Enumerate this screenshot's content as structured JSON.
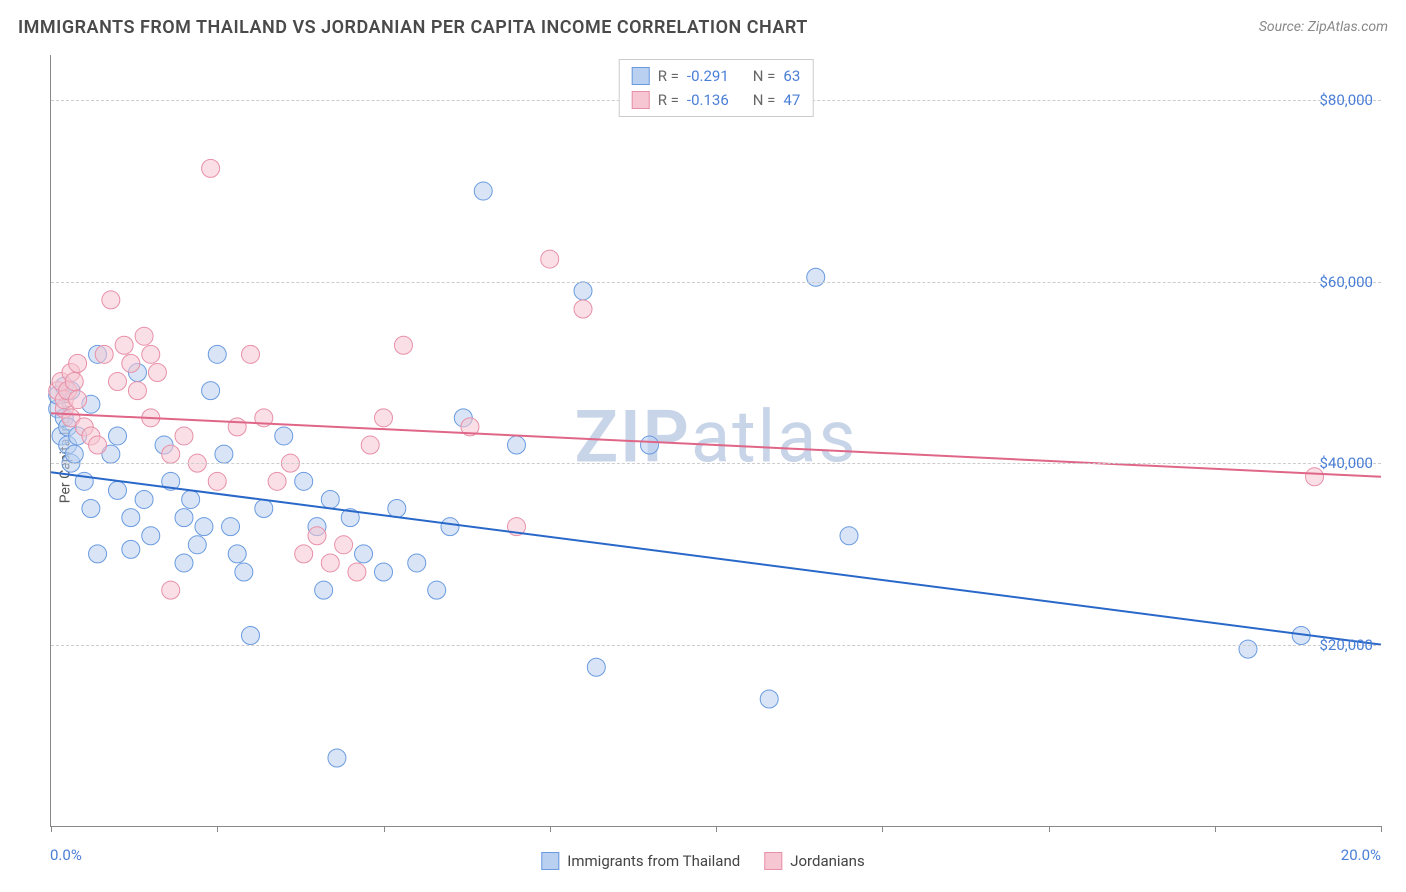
{
  "header": {
    "title": "IMMIGRANTS FROM THAILAND VS JORDANIAN PER CAPITA INCOME CORRELATION CHART",
    "source": "Source: ZipAtlas.com"
  },
  "watermark": {
    "zip": "ZIP",
    "atlas": "atlas",
    "color": "#c8d4e8"
  },
  "chart": {
    "type": "scatter",
    "y_label": "Per Capita Income",
    "x_min_label": "0.0%",
    "x_max_label": "20.0%",
    "xlim": [
      0,
      20
    ],
    "ylim": [
      0,
      85000
    ],
    "y_ticks": [
      20000,
      40000,
      60000,
      80000
    ],
    "y_tick_labels": [
      "$20,000",
      "$40,000",
      "$60,000",
      "$80,000"
    ],
    "x_ticks": [
      0,
      2.5,
      5,
      7.5,
      10,
      12.5,
      15,
      17.5,
      20
    ],
    "grid_color": "#cccccc",
    "axis_color": "#888888",
    "tick_label_color": "#4a7fd6",
    "marker_radius": 9,
    "marker_opacity": 0.55,
    "line_width": 2,
    "series": [
      {
        "name": "Immigrants from Thailand",
        "color_fill": "#b9d0f0",
        "color_stroke": "#6a9be0",
        "line_color": "#2968c8",
        "R": "-0.291",
        "N": "63",
        "trend": {
          "x1": 0,
          "y1": 39000,
          "x2": 20,
          "y2": 20000
        },
        "points": [
          [
            0.1,
            46000
          ],
          [
            0.1,
            47500
          ],
          [
            0.15,
            43000
          ],
          [
            0.2,
            45000
          ],
          [
            0.2,
            48500
          ],
          [
            0.25,
            44000
          ],
          [
            0.25,
            42000
          ],
          [
            0.3,
            48000
          ],
          [
            0.3,
            40000
          ],
          [
            0.35,
            41000
          ],
          [
            0.4,
            43000
          ],
          [
            0.5,
            38000
          ],
          [
            0.6,
            35000
          ],
          [
            0.6,
            46500
          ],
          [
            0.7,
            52000
          ],
          [
            0.7,
            30000
          ],
          [
            0.9,
            41000
          ],
          [
            1.0,
            37000
          ],
          [
            1.0,
            43000
          ],
          [
            1.2,
            30500
          ],
          [
            1.2,
            34000
          ],
          [
            1.3,
            50000
          ],
          [
            1.4,
            36000
          ],
          [
            1.5,
            32000
          ],
          [
            1.7,
            42000
          ],
          [
            1.8,
            38000
          ],
          [
            2.0,
            34000
          ],
          [
            2.0,
            29000
          ],
          [
            2.1,
            36000
          ],
          [
            2.2,
            31000
          ],
          [
            2.3,
            33000
          ],
          [
            2.4,
            48000
          ],
          [
            2.5,
            52000
          ],
          [
            2.6,
            41000
          ],
          [
            2.7,
            33000
          ],
          [
            2.8,
            30000
          ],
          [
            2.9,
            28000
          ],
          [
            3.0,
            21000
          ],
          [
            3.2,
            35000
          ],
          [
            3.5,
            43000
          ],
          [
            3.8,
            38000
          ],
          [
            4.0,
            33000
          ],
          [
            4.1,
            26000
          ],
          [
            4.2,
            36000
          ],
          [
            4.3,
            7500
          ],
          [
            4.5,
            34000
          ],
          [
            4.7,
            30000
          ],
          [
            5.0,
            28000
          ],
          [
            5.2,
            35000
          ],
          [
            5.5,
            29000
          ],
          [
            5.8,
            26000
          ],
          [
            6.0,
            33000
          ],
          [
            6.2,
            45000
          ],
          [
            6.5,
            70000
          ],
          [
            7.0,
            42000
          ],
          [
            8.0,
            59000
          ],
          [
            8.2,
            17500
          ],
          [
            9.0,
            42000
          ],
          [
            10.8,
            14000
          ],
          [
            11.5,
            60500
          ],
          [
            12.0,
            32000
          ],
          [
            18.0,
            19500
          ],
          [
            18.8,
            21000
          ]
        ]
      },
      {
        "name": "Jordanians",
        "color_fill": "#f6c6d2",
        "color_stroke": "#e890a8",
        "line_color": "#e06688",
        "R": "-0.136",
        "N": "47",
        "trend": {
          "x1": 0,
          "y1": 45500,
          "x2": 20,
          "y2": 38500
        },
        "points": [
          [
            0.1,
            48000
          ],
          [
            0.15,
            49000
          ],
          [
            0.2,
            46000
          ],
          [
            0.2,
            47000
          ],
          [
            0.25,
            48000
          ],
          [
            0.3,
            50000
          ],
          [
            0.3,
            45000
          ],
          [
            0.35,
            49000
          ],
          [
            0.4,
            47000
          ],
          [
            0.4,
            51000
          ],
          [
            0.5,
            44000
          ],
          [
            0.6,
            43000
          ],
          [
            0.7,
            42000
          ],
          [
            0.8,
            52000
          ],
          [
            0.9,
            58000
          ],
          [
            1.0,
            49000
          ],
          [
            1.1,
            53000
          ],
          [
            1.2,
            51000
          ],
          [
            1.3,
            48000
          ],
          [
            1.4,
            54000
          ],
          [
            1.5,
            52000
          ],
          [
            1.5,
            45000
          ],
          [
            1.6,
            50000
          ],
          [
            1.8,
            41000
          ],
          [
            1.8,
            26000
          ],
          [
            2.0,
            43000
          ],
          [
            2.2,
            40000
          ],
          [
            2.4,
            72500
          ],
          [
            2.5,
            38000
          ],
          [
            2.8,
            44000
          ],
          [
            3.0,
            52000
          ],
          [
            3.2,
            45000
          ],
          [
            3.4,
            38000
          ],
          [
            3.6,
            40000
          ],
          [
            3.8,
            30000
          ],
          [
            4.0,
            32000
          ],
          [
            4.2,
            29000
          ],
          [
            4.4,
            31000
          ],
          [
            4.6,
            28000
          ],
          [
            4.8,
            42000
          ],
          [
            5.0,
            45000
          ],
          [
            5.3,
            53000
          ],
          [
            6.3,
            44000
          ],
          [
            7.0,
            33000
          ],
          [
            7.5,
            62500
          ],
          [
            8.0,
            57000
          ],
          [
            19.0,
            38500
          ]
        ]
      }
    ]
  },
  "legend_top": {
    "r_label": "R =",
    "n_label": "N =",
    "value_color": "#4a7fd6",
    "text_color": "#666666"
  },
  "legend_bottom": {
    "text_color": "#444444"
  }
}
